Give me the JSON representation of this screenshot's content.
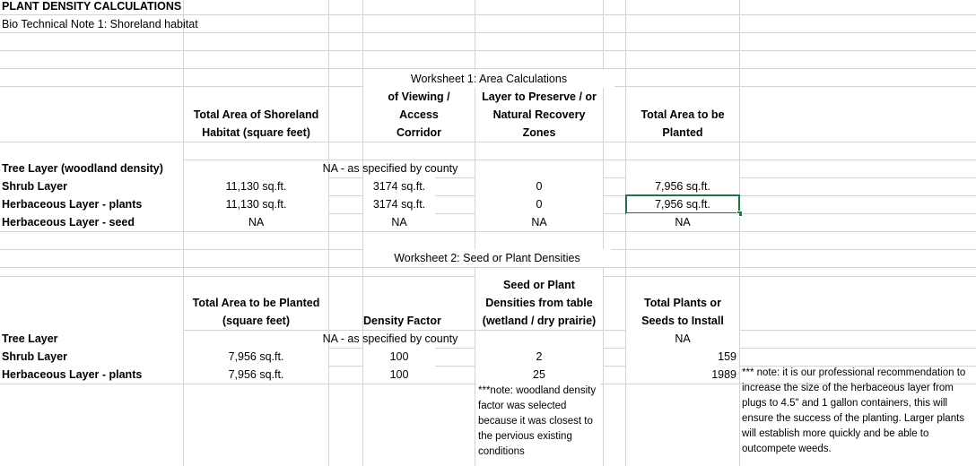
{
  "title": "PLANT DENSITY CALCULATIONS",
  "subtitle": "Bio Technical Note 1: Shoreland habitat",
  "ws1": {
    "title": "Worksheet 1: Area Calculations",
    "col_total_area_l1": "Total Area of Shoreland",
    "col_total_area_l2": "Habitat (square feet)",
    "col_viewing_l1": "of Viewing /",
    "col_viewing_l2": "Access",
    "col_viewing_l3": "Corridor",
    "col_preserve_l1": "Layer to Preserve / or",
    "col_preserve_l2": "Natural Recovery",
    "col_preserve_l3": "Zones",
    "col_planted_l1": "Total Area to be",
    "col_planted_l2": "Planted",
    "rows": [
      {
        "label": "Tree Layer (woodland density)",
        "na_note": "NA - as specified by county"
      },
      {
        "label": "Shrub Layer",
        "total": "11,130 sq.ft.",
        "viewing": "3174 sq.ft.",
        "preserve": "0",
        "planted": "7,956 sq.ft."
      },
      {
        "label": "Herbaceous Layer - plants",
        "total": "11,130 sq.ft.",
        "viewing": "3174 sq.ft.",
        "preserve": "0",
        "planted": "7,956 sq.ft."
      },
      {
        "label": "Herbaceous Layer - seed",
        "total": "NA",
        "viewing": "NA",
        "preserve": "NA",
        "planted": "NA"
      }
    ]
  },
  "ws2": {
    "title": "Worksheet 2: Seed or Plant Densities",
    "col_area_l1": "Total Area to be Planted",
    "col_area_l2": "(square feet)",
    "col_density": "Density Factor",
    "col_seed_l1": "Seed or Plant",
    "col_seed_l2": "Densities from table",
    "col_seed_l3": "(wetland / dry prairie)",
    "col_total_l1": "Total Plants or",
    "col_total_l2": "Seeds to Install",
    "rows": [
      {
        "label": "Tree Layer",
        "na_note": "NA - as specified by county",
        "total": "NA"
      },
      {
        "label": "Shrub Layer",
        "area": "7,956 sq.ft.",
        "density": "100",
        "seed": "2",
        "total": "159"
      },
      {
        "label": "Herbaceous Layer - plants",
        "area": "7,956 sq.ft.",
        "density": "100",
        "seed": "25",
        "total": "1989"
      }
    ],
    "woodland_note": "***note: woodland density factor was selected because it was closest to the pervious existing conditions",
    "pro_note": "*** note: it is our professional recommendation to increase the size of the herbaceous layer from plugs to 4.5\" and 1 gallon containers, this will ensure the success of the planting. Larger plants will establish more quickly and be able to outcompete weeds."
  }
}
